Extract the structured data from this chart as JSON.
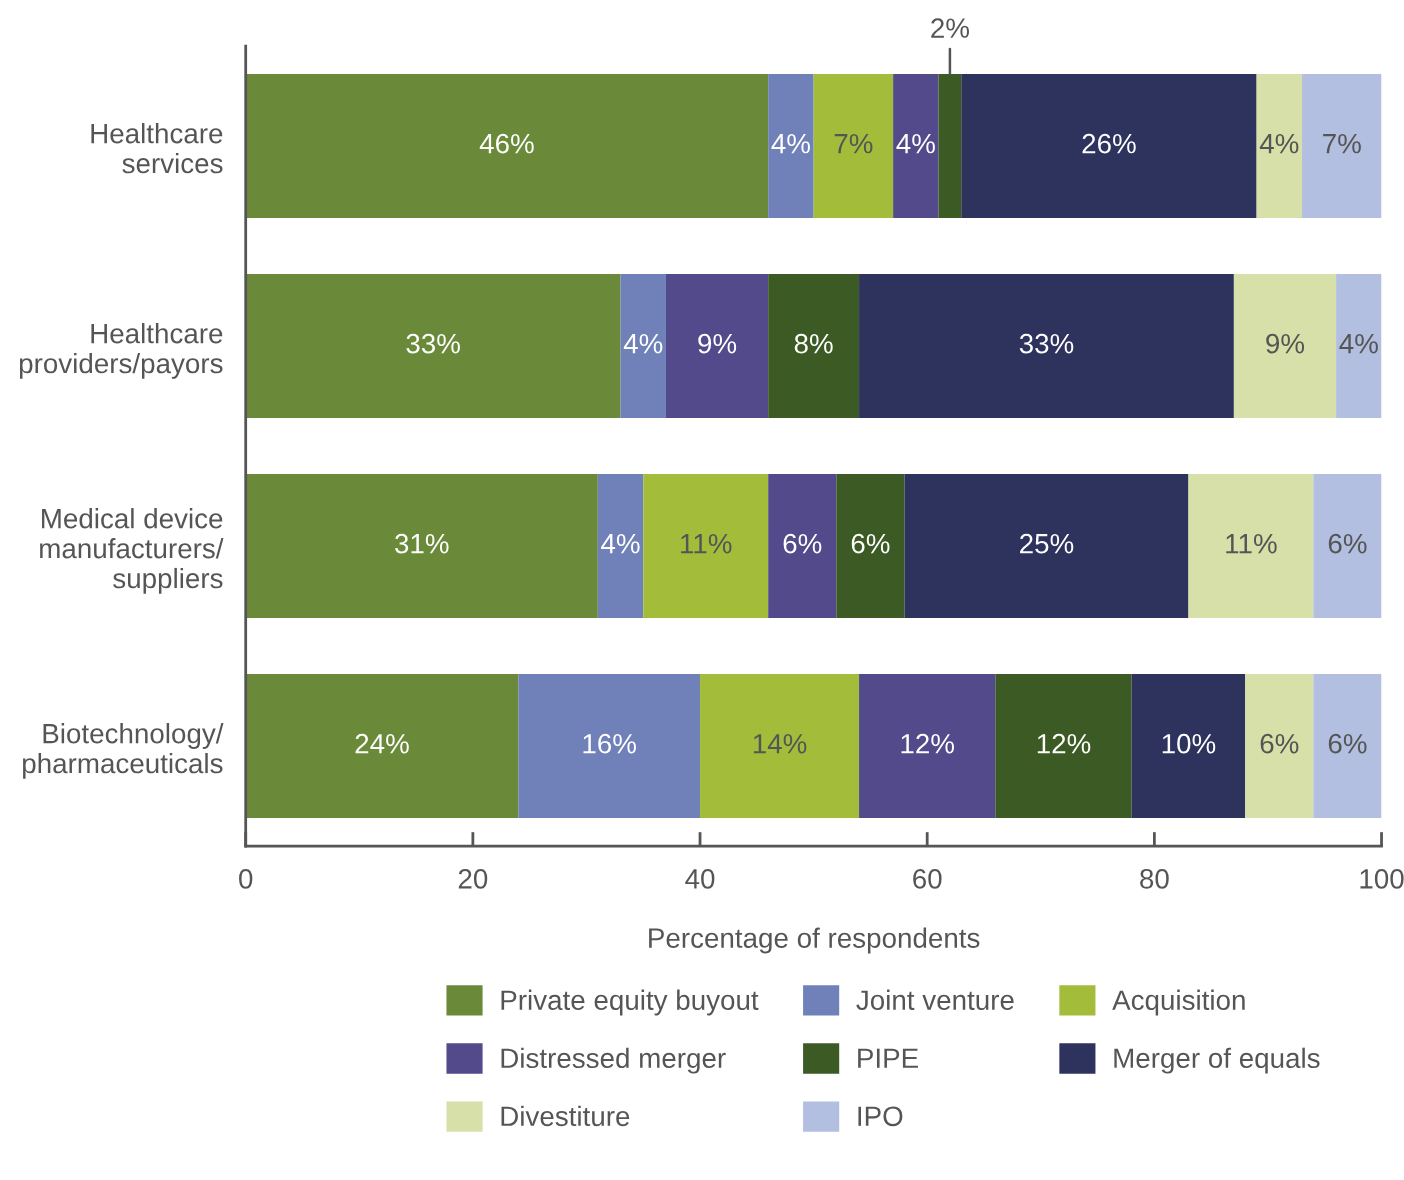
{
  "chart_data": {
    "type": "bar",
    "orientation": "horizontal",
    "stacked": true,
    "legend": "bottom",
    "categories": [
      "Healthcare\nservices",
      "Healthcare\nproviders/payors",
      "Medical device\nmanufacturers/\nsuppliers",
      "Biotechnology/\npharmaceuticals"
    ],
    "xlabel": "Percentage of respondents",
    "xlim": [
      0,
      100
    ],
    "xticks": [
      0,
      20,
      40,
      60,
      80,
      100
    ],
    "series": [
      {
        "name": "Private equity buyout",
        "color": "#6a8a3a",
        "values": [
          46,
          33,
          31,
          24
        ],
        "value_labels": [
          "46%",
          "33%",
          "31%",
          "24%"
        ]
      },
      {
        "name": "Joint venture",
        "color": "#7080b8",
        "values": [
          4,
          4,
          4,
          16
        ],
        "value_labels": [
          "4%",
          "4%",
          "4%",
          "16%"
        ]
      },
      {
        "name": "Acquisition",
        "color": "#a3bd3a",
        "values": [
          7,
          null,
          11,
          14
        ],
        "value_labels": [
          "7%",
          null,
          "11%",
          "14%"
        ]
      },
      {
        "name": "Distressed merger",
        "color": "#524a8a",
        "values": [
          4,
          9,
          6,
          12
        ],
        "value_labels": [
          "4%",
          "9%",
          "6%",
          "12%"
        ]
      },
      {
        "name": "PIPE",
        "color": "#3c5a24",
        "values": [
          2,
          8,
          6,
          12
        ],
        "value_labels": [
          "2%",
          "8%",
          "6%",
          "12%"
        ]
      },
      {
        "name": "Merger of equals",
        "color": "#2e335e",
        "values": [
          26,
          33,
          25,
          10
        ],
        "value_labels": [
          "26%",
          "33%",
          "25%",
          "10%"
        ]
      },
      {
        "name": "Divestiture",
        "color": "#d6e0a8",
        "values": [
          4,
          9,
          11,
          6
        ],
        "value_labels": [
          "4%",
          "9%",
          "11%",
          "6%"
        ]
      },
      {
        "name": "IPO",
        "color": "#b3bfe0",
        "values": [
          7,
          4,
          6,
          6
        ],
        "value_labels": [
          "7%",
          "4%",
          "6%",
          "6%"
        ]
      }
    ]
  }
}
